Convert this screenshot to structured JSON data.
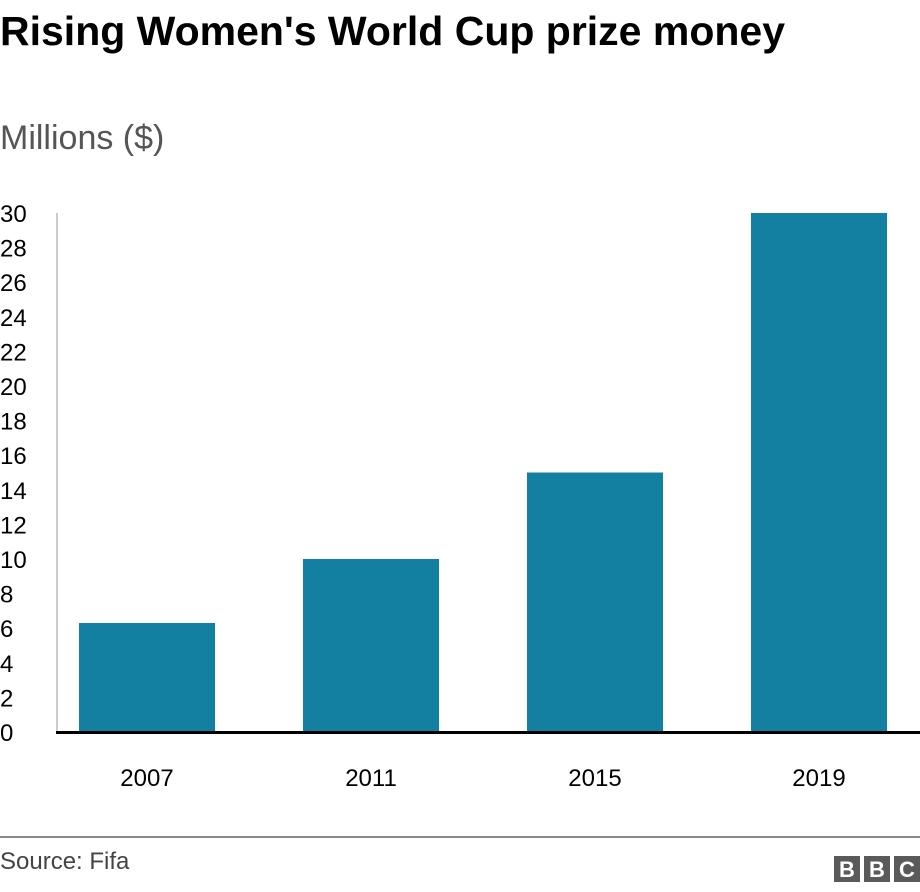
{
  "chart_data": {
    "type": "bar",
    "title": "Rising Women's World Cup prize money",
    "subtitle": "Millions ($)",
    "categories": [
      "2007",
      "2011",
      "2015",
      "2019"
    ],
    "values": [
      6.3,
      10,
      15,
      30
    ],
    "xlabel": "",
    "ylabel": "",
    "ylim": [
      0,
      30
    ],
    "yticks": [
      0,
      2,
      4,
      6,
      8,
      10,
      12,
      14,
      16,
      18,
      20,
      22,
      24,
      26,
      28,
      30
    ],
    "grid": false,
    "bar_color": "#1380a1"
  },
  "footer": {
    "source": "Source: Fifa",
    "logo": "BBC"
  }
}
